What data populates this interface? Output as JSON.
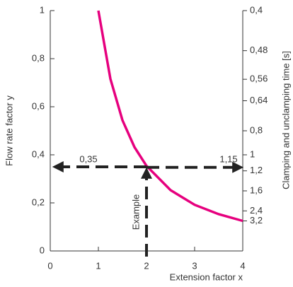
{
  "chart_data": {
    "type": "line",
    "ylabel": "Flow rate factor y",
    "xlabel": "Extension factor x",
    "y2label": "Clamping and unclamping time [s]",
    "series": [
      {
        "name": null,
        "color": "#e6007e",
        "x": [
          1,
          1.25,
          1.5,
          1.75,
          2,
          2.5,
          3,
          3.5,
          4
        ],
        "values": [
          1,
          0.716,
          0.544,
          0.432,
          0.354,
          0.253,
          0.192,
          0.153,
          0.125
        ]
      }
    ],
    "xlim": [
      0,
      4
    ],
    "xticks": [
      0,
      1,
      2,
      3,
      4
    ],
    "ylim": [
      0,
      1
    ],
    "yticks": [
      0,
      {
        "value": 0.2,
        "label": "0,2"
      },
      {
        "value": 0.4,
        "label": "0,4"
      },
      {
        "value": 0.6,
        "label": "0,6"
      },
      {
        "value": 0.8,
        "label": "0,8"
      },
      1
    ],
    "y2scale": "reciprocal",
    "y2lim": [
      {
        "value": 0.4,
        "label": "0,4"
      },
      {
        "value": 3.2,
        "label": "3,2"
      }
    ],
    "y2ticks": [
      {
        "value": 0.4,
        "label": "0,4"
      },
      {
        "value": 0.48,
        "label": "0,48"
      },
      {
        "value": 0.56,
        "label": "0,56"
      },
      {
        "value": 0.64,
        "label": "0,64"
      },
      {
        "value": 0.8,
        "label": "0,8"
      },
      1,
      {
        "value": 1.2,
        "label": "1,2"
      },
      {
        "value": 1.6,
        "label": "1,6"
      },
      {
        "value": 2.4,
        "label": "2,4"
      },
      {
        "value": 3.2,
        "label": "3,2"
      }
    ],
    "example": {
      "label": "Example",
      "x": 2,
      "y": {
        "value": 0.35,
        "label": "0,35"
      },
      "time": {
        "value": 1.15,
        "label": "1,15"
      }
    },
    "grid": false
  }
}
